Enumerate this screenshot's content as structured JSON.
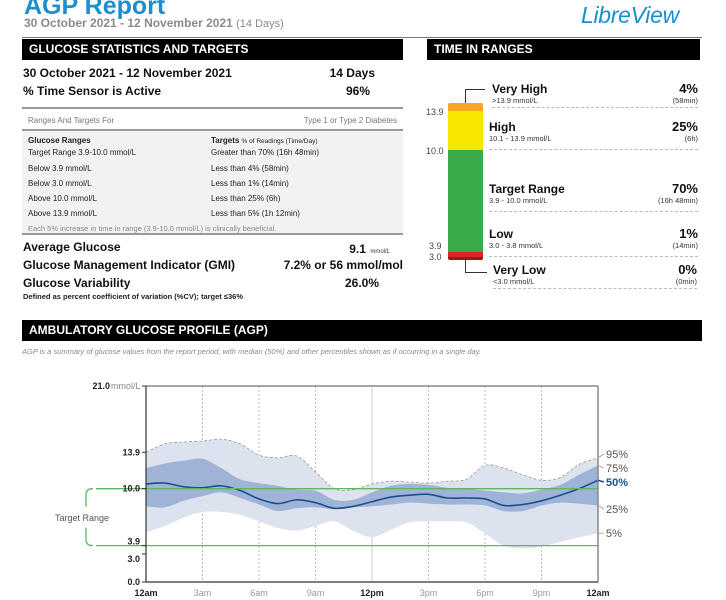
{
  "header": {
    "title": "AGP Report",
    "date_range": "30 October 2021 - 12 November 2021",
    "days_note": "(14 Days)",
    "logo": "LibreView"
  },
  "stats": {
    "section_title": "GLUCOSE STATISTICS AND TARGETS",
    "period_label": "30 October 2021 - 12 November 2021",
    "period_value": "14 Days",
    "sensor_label": "% Time Sensor is Active",
    "sensor_value": "96%",
    "ranges_for_label": "Ranges And Targets For",
    "ranges_for_value": "Type 1 or Type 2 Diabetes",
    "col1_header": "Glucose Ranges",
    "col2_header": "Targets",
    "col2_header_sub": "% of Readings (Time/Day)",
    "rows": [
      {
        "range": "Target Range 3.9-10.0 mmol/L",
        "target": "Greater than 70% (16h 48min)"
      },
      {
        "range": "Below 3.9 mmol/L",
        "target": "Less than 4% (58min)"
      },
      {
        "range": "Below 3.0 mmol/L",
        "target": "Less than 1% (14min)"
      },
      {
        "range": "Above 10.0 mmol/L",
        "target": "Less than 25% (6h)"
      },
      {
        "range": "Above 13.9 mmol/L",
        "target": "Less than 5% (1h 12min)"
      }
    ],
    "note": "Each 5% increase in time in range (3.9-10.0 mmol/L) is clinically beneficial.",
    "avg_label": "Average Glucose",
    "avg_value": "9.1",
    "avg_unit": "mmol/L",
    "gmi_label": "Glucose Management Indicator (GMI)",
    "gmi_value": "7.2% or 56 mmol/mol",
    "gv_label": "Glucose Variability",
    "gv_value": "26.0%",
    "gv_note": "Defined as percent coefficient of variation (%CV); target ≤36%"
  },
  "tir": {
    "section_title": "TIME IN RANGES",
    "axis_labels": [
      "13.9",
      "10.0",
      "3.9",
      "3.0"
    ],
    "ranges": [
      {
        "name": "Very High",
        "sub": ">13.9 mmol/L",
        "pct": "4%",
        "time": "(58min)",
        "value": 4,
        "color": "#f5a623"
      },
      {
        "name": "High",
        "sub": "10.1 - 13.9 mmol/L",
        "pct": "25%",
        "time": "(6h)",
        "value": 25,
        "color": "#f7e600"
      },
      {
        "name": "Target Range",
        "sub": "3.9 - 10.0 mmol/L",
        "pct": "70%",
        "time": "(16h 48min)",
        "value": 70,
        "color": "#3aaa4a"
      },
      {
        "name": "Low",
        "sub": "3.0 - 3.8 mmol/L",
        "pct": "1%",
        "time": "(14min)",
        "value": 1,
        "color": "#d9262c"
      },
      {
        "name": "Very Low",
        "sub": "<3.0 mmol/L",
        "pct": "0%",
        "time": "(0min)",
        "value": 0,
        "color": "#a0141a"
      }
    ]
  },
  "agp": {
    "section_title": "AMBULATORY GLUCOSE PROFILE (AGP)",
    "description": "AGP is a summary of glucose values from the report period, with median (50%) and other percentiles shown as if occurring in a single day.",
    "target_range_label": "Target Range"
  },
  "chart_data": {
    "type": "area",
    "title": "AMBULATORY GLUCOSE PROFILE (AGP)",
    "ylabel": "mmol/L",
    "ylim": [
      0,
      21
    ],
    "y_ticks": [
      "21.0",
      "13.9",
      "10.0",
      "3.9",
      "3.0",
      "0.0"
    ],
    "y_tick_values": [
      21.0,
      13.9,
      10.0,
      3.9,
      3.0,
      0.0
    ],
    "y_top_unit": "mmol/L",
    "x_ticks": [
      "12am",
      "3am",
      "6am",
      "9am",
      "12pm",
      "3pm",
      "6pm",
      "9pm",
      "12am"
    ],
    "x_hours": [
      0,
      1,
      2,
      3,
      4,
      5,
      6,
      7,
      8,
      9,
      10,
      11,
      12,
      13,
      14,
      15,
      16,
      17,
      18,
      19,
      20,
      21,
      22,
      23,
      24
    ],
    "target_range": [
      3.9,
      10.0
    ],
    "percentile_labels": [
      "95%",
      "75%",
      "50%",
      "25%",
      "5%"
    ],
    "series": [
      {
        "name": "95%",
        "values": [
          13.9,
          14.8,
          15.0,
          15.1,
          15.3,
          14.8,
          13.6,
          13.3,
          13.5,
          11.8,
          10.0,
          9.9,
          10.5,
          10.8,
          10.7,
          10.6,
          10.8,
          11.0,
          12.5,
          12.2,
          11.5,
          10.9,
          11.2,
          12.6,
          13.3
        ]
      },
      {
        "name": "75%",
        "values": [
          12.2,
          12.7,
          13.0,
          13.2,
          12.2,
          11.0,
          10.6,
          10.3,
          9.9,
          9.8,
          8.8,
          8.8,
          9.6,
          10.3,
          10.5,
          10.4,
          10.1,
          10.0,
          9.8,
          9.6,
          9.5,
          9.9,
          10.4,
          11.5,
          12.5
        ]
      },
      {
        "name": "50%",
        "values": [
          10.5,
          10.6,
          10.2,
          10.1,
          10.3,
          9.8,
          8.9,
          8.4,
          8.8,
          8.5,
          7.9,
          8.1,
          8.6,
          9.1,
          9.3,
          9.4,
          9.0,
          9.0,
          8.9,
          8.2,
          8.3,
          8.7,
          9.3,
          10.0,
          10.9
        ]
      },
      {
        "name": "25%",
        "values": [
          8.1,
          8.0,
          8.7,
          9.2,
          9.6,
          9.0,
          8.3,
          7.6,
          7.9,
          8.0,
          7.8,
          8.0,
          8.1,
          8.3,
          8.5,
          8.4,
          8.3,
          8.3,
          8.2,
          7.6,
          7.6,
          8.2,
          8.5,
          8.4,
          8.2
        ]
      },
      {
        "name": "5%",
        "values": [
          5.3,
          6.0,
          6.9,
          7.5,
          7.5,
          7.2,
          6.5,
          5.8,
          5.5,
          6.0,
          6.5,
          5.5,
          4.8,
          5.6,
          6.4,
          6.5,
          6.5,
          6.4,
          5.2,
          3.9,
          3.6,
          3.8,
          4.3,
          4.8,
          5.2
        ]
      }
    ],
    "colors": {
      "outer_band": "#dde3ee",
      "inner_band": "#9fb3d6",
      "median": "#1e4e8c",
      "target_lines": "#5cb85c",
      "p95_dash": "#9a9a9a"
    },
    "grid": true
  }
}
